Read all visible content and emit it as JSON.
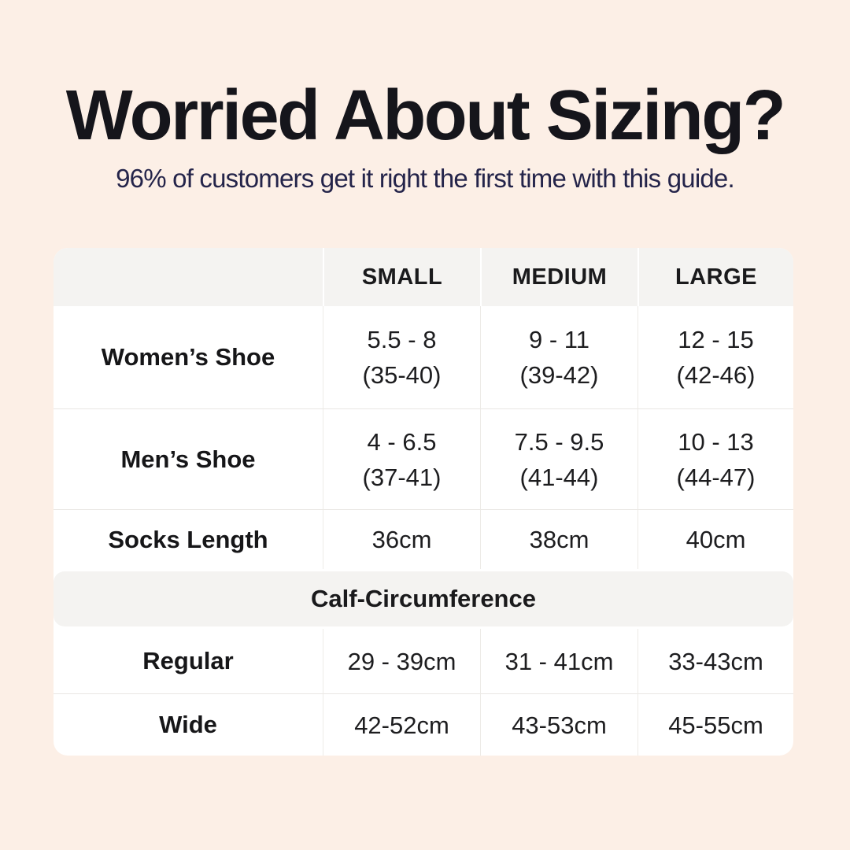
{
  "page": {
    "background_color": "#fcefe6",
    "title_color": "#15151b",
    "subtitle_color": "#24244a",
    "table_header_bg": "#f4f3f1"
  },
  "header": {
    "title": "Worried About Sizing?",
    "subtitle": "96% of customers get it right the first time with this guide."
  },
  "table": {
    "columns": [
      "",
      "SMALL",
      "MEDIUM",
      "LARGE"
    ],
    "rows": [
      {
        "label": "Women’s Shoe",
        "cells": [
          [
            "5.5 - 8",
            "(35-40)"
          ],
          [
            "9 - 11",
            "(39-42)"
          ],
          [
            "12 - 15",
            "(42-46)"
          ]
        ]
      },
      {
        "label": "Men’s Shoe",
        "cells": [
          [
            "4 - 6.5",
            "(37-41)"
          ],
          [
            "7.5 - 9.5",
            "(41-44)"
          ],
          [
            "10 - 13",
            "(44-47)"
          ]
        ]
      },
      {
        "label": "Socks Length",
        "cells": [
          [
            "36cm"
          ],
          [
            "38cm"
          ],
          [
            "40cm"
          ]
        ]
      }
    ],
    "section_header": "Calf-Circumference",
    "section_rows": [
      {
        "label": "Regular",
        "cells": [
          [
            "29 - 39cm"
          ],
          [
            "31 - 41cm"
          ],
          [
            "33-43cm"
          ]
        ]
      },
      {
        "label": "Wide",
        "cells": [
          [
            "42-52cm"
          ],
          [
            "43-53cm"
          ],
          [
            "45-55cm"
          ]
        ]
      }
    ]
  }
}
